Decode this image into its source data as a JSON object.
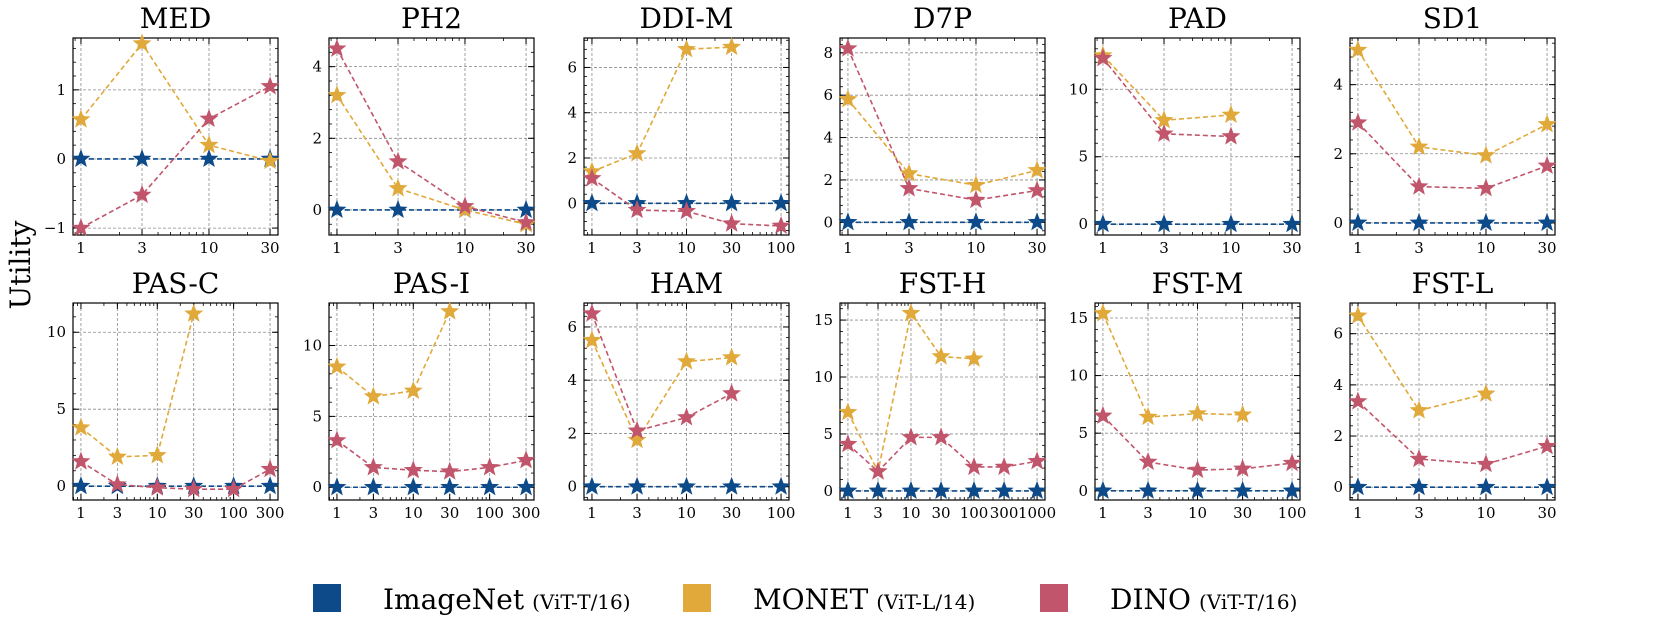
{
  "figure": {
    "ylabel": "Utility",
    "colors": {
      "imagenet": "#0c4a8a",
      "monet": "#e0a93a",
      "dino": "#c1556b"
    },
    "legend": [
      {
        "key": "imagenet",
        "label": "ImageNet",
        "sub": "(ViT-T/16)"
      },
      {
        "key": "monet",
        "label": "MONET",
        "sub": "(ViT-L/14)"
      },
      {
        "key": "dino",
        "label": "DINO",
        "sub": "(ViT-T/16)"
      }
    ]
  },
  "chart_data": [
    {
      "type": "line",
      "title": "MED",
      "xscale": "log",
      "x_ticks": [
        "1",
        "3",
        "10",
        "30"
      ],
      "xlim": [
        1,
        30
      ],
      "ylim": [
        -1.1,
        1.75
      ],
      "y_ticks": [
        -1,
        0,
        1
      ],
      "series": [
        {
          "key": "imagenet",
          "x": [
            1,
            3,
            10,
            30
          ],
          "y": [
            0,
            0,
            0,
            0
          ]
        },
        {
          "key": "monet",
          "x": [
            1,
            3,
            10,
            30
          ],
          "y": [
            0.57,
            1.67,
            0.2,
            -0.03
          ]
        },
        {
          "key": "dino",
          "x": [
            1,
            3,
            10,
            30
          ],
          "y": [
            -1.0,
            -0.52,
            0.58,
            1.05
          ]
        }
      ]
    },
    {
      "type": "line",
      "title": "PH2",
      "xscale": "log",
      "x_ticks": [
        "1",
        "3",
        "10",
        "30"
      ],
      "xlim": [
        1,
        30
      ],
      "ylim": [
        -0.7,
        4.8
      ],
      "y_ticks": [
        0,
        2,
        4
      ],
      "series": [
        {
          "key": "imagenet",
          "x": [
            1,
            3,
            10,
            30
          ],
          "y": [
            0,
            0,
            0,
            0
          ]
        },
        {
          "key": "monet",
          "x": [
            1,
            3,
            10,
            30
          ],
          "y": [
            3.2,
            0.6,
            0.0,
            -0.4
          ]
        },
        {
          "key": "dino",
          "x": [
            1,
            3,
            10,
            30
          ],
          "y": [
            4.5,
            1.35,
            0.1,
            -0.35
          ]
        }
      ]
    },
    {
      "type": "line",
      "title": "DDI-M",
      "xscale": "log",
      "x_ticks": [
        "1",
        "3",
        "10",
        "30",
        "100"
      ],
      "xlim": [
        1,
        100
      ],
      "ylim": [
        -1.4,
        7.3
      ],
      "y_ticks": [
        0,
        2,
        4,
        6
      ],
      "series": [
        {
          "key": "imagenet",
          "x": [
            1,
            3,
            10,
            30,
            100
          ],
          "y": [
            0,
            0,
            0,
            0,
            0
          ]
        },
        {
          "key": "monet",
          "x": [
            1,
            3,
            10,
            30
          ],
          "y": [
            1.4,
            2.2,
            6.8,
            6.9
          ]
        },
        {
          "key": "dino",
          "x": [
            1,
            3,
            10,
            30,
            100
          ],
          "y": [
            1.1,
            -0.3,
            -0.35,
            -0.9,
            -1.0
          ]
        }
      ]
    },
    {
      "type": "line",
      "title": "D7P",
      "xscale": "log",
      "x_ticks": [
        "1",
        "3",
        "10",
        "30"
      ],
      "xlim": [
        1,
        30
      ],
      "ylim": [
        -0.6,
        8.7
      ],
      "y_ticks": [
        0,
        2,
        4,
        6,
        8
      ],
      "series": [
        {
          "key": "imagenet",
          "x": [
            1,
            3,
            10,
            30
          ],
          "y": [
            0,
            0,
            0,
            0
          ]
        },
        {
          "key": "monet",
          "x": [
            1,
            3,
            10,
            30
          ],
          "y": [
            5.8,
            2.3,
            1.75,
            2.45
          ]
        },
        {
          "key": "dino",
          "x": [
            1,
            3,
            10,
            30
          ],
          "y": [
            8.2,
            1.6,
            1.05,
            1.5
          ]
        }
      ]
    },
    {
      "type": "line",
      "title": "PAD",
      "xscale": "log",
      "x_ticks": [
        "1",
        "3",
        "10",
        "30"
      ],
      "xlim": [
        1,
        30
      ],
      "ylim": [
        -0.8,
        13.8
      ],
      "y_ticks": [
        0,
        5,
        10
      ],
      "series": [
        {
          "key": "imagenet",
          "x": [
            1,
            3,
            10,
            30
          ],
          "y": [
            0,
            0,
            0,
            0
          ]
        },
        {
          "key": "monet",
          "x": [
            1,
            3,
            10
          ],
          "y": [
            12.5,
            7.7,
            8.1
          ]
        },
        {
          "key": "dino",
          "x": [
            1,
            3,
            10
          ],
          "y": [
            12.3,
            6.7,
            6.5
          ]
        }
      ]
    },
    {
      "type": "line",
      "title": "SD1",
      "xscale": "log",
      "x_ticks": [
        "1",
        "3",
        "10",
        "30"
      ],
      "xlim": [
        1,
        30
      ],
      "ylim": [
        -0.35,
        5.35
      ],
      "y_ticks": [
        0,
        2,
        4
      ],
      "series": [
        {
          "key": "imagenet",
          "x": [
            1,
            3,
            10,
            30
          ],
          "y": [
            0,
            0,
            0,
            0
          ]
        },
        {
          "key": "monet",
          "x": [
            1,
            3,
            10,
            30
          ],
          "y": [
            5.0,
            2.2,
            1.95,
            2.85
          ]
        },
        {
          "key": "dino",
          "x": [
            1,
            3,
            10,
            30
          ],
          "y": [
            2.9,
            1.05,
            1.0,
            1.65
          ]
        }
      ]
    },
    {
      "type": "line",
      "title": "PAS-C",
      "xscale": "log",
      "x_ticks": [
        "1",
        "3",
        "10",
        "30",
        "100",
        "300"
      ],
      "xlim": [
        1,
        300
      ],
      "ylim": [
        -0.9,
        11.9
      ],
      "y_ticks": [
        0,
        5,
        10
      ],
      "series": [
        {
          "key": "imagenet",
          "x": [
            1,
            3,
            10,
            30,
            100,
            300
          ],
          "y": [
            0,
            0,
            0,
            0,
            0,
            0
          ]
        },
        {
          "key": "monet",
          "x": [
            1,
            3,
            10,
            30
          ],
          "y": [
            3.8,
            1.9,
            2.0,
            11.2
          ]
        },
        {
          "key": "dino",
          "x": [
            1,
            3,
            10,
            30,
            100,
            300
          ],
          "y": [
            1.6,
            0.1,
            -0.1,
            -0.2,
            -0.2,
            1.1
          ]
        }
      ]
    },
    {
      "type": "line",
      "title": "PAS-I",
      "xscale": "log",
      "x_ticks": [
        "1",
        "3",
        "10",
        "30",
        "100",
        "300"
      ],
      "xlim": [
        1,
        300
      ],
      "ylim": [
        -0.9,
        13.0
      ],
      "y_ticks": [
        0,
        5,
        10
      ],
      "series": [
        {
          "key": "imagenet",
          "x": [
            1,
            3,
            10,
            30,
            100,
            300
          ],
          "y": [
            0,
            0,
            0,
            0,
            0,
            0
          ]
        },
        {
          "key": "monet",
          "x": [
            1,
            3,
            10,
            30
          ],
          "y": [
            8.5,
            6.4,
            6.8,
            12.4
          ]
        },
        {
          "key": "dino",
          "x": [
            1,
            3,
            10,
            30,
            100,
            300
          ],
          "y": [
            3.3,
            1.4,
            1.2,
            1.1,
            1.4,
            1.9
          ]
        }
      ]
    },
    {
      "type": "line",
      "title": "HAM",
      "xscale": "log",
      "x_ticks": [
        "1",
        "3",
        "10",
        "30",
        "100"
      ],
      "xlim": [
        1,
        100
      ],
      "ylim": [
        -0.5,
        6.9
      ],
      "y_ticks": [
        0,
        2,
        4,
        6
      ],
      "series": [
        {
          "key": "imagenet",
          "x": [
            1,
            3,
            10,
            30,
            100
          ],
          "y": [
            0,
            0,
            0,
            0,
            0
          ]
        },
        {
          "key": "monet",
          "x": [
            1,
            3,
            10,
            30
          ],
          "y": [
            5.5,
            1.75,
            4.7,
            4.85
          ]
        },
        {
          "key": "dino",
          "x": [
            1,
            3,
            10,
            30
          ],
          "y": [
            6.5,
            2.1,
            2.6,
            3.5
          ]
        }
      ]
    },
    {
      "type": "line",
      "title": "FST-H",
      "xscale": "log",
      "x_ticks": [
        "1",
        "3",
        "10",
        "30",
        "100",
        "300",
        "1000"
      ],
      "xlim": [
        1,
        1000
      ],
      "ylim": [
        -0.8,
        16.5
      ],
      "y_ticks": [
        0,
        5,
        10,
        15
      ],
      "series": [
        {
          "key": "imagenet",
          "x": [
            1,
            3,
            10,
            30,
            100,
            300,
            1000
          ],
          "y": [
            0,
            0,
            0,
            0,
            0,
            0,
            0
          ]
        },
        {
          "key": "monet",
          "x": [
            1,
            3,
            10,
            30,
            100
          ],
          "y": [
            6.9,
            1.7,
            15.6,
            11.8,
            11.6
          ]
        },
        {
          "key": "dino",
          "x": [
            1,
            3,
            10,
            30,
            100,
            300,
            1000
          ],
          "y": [
            4.1,
            1.7,
            4.7,
            4.7,
            2.1,
            2.1,
            2.6
          ]
        }
      ]
    },
    {
      "type": "line",
      "title": "FST-M",
      "xscale": "log",
      "x_ticks": [
        "1",
        "3",
        "10",
        "30",
        "100"
      ],
      "xlim": [
        1,
        100
      ],
      "ylim": [
        -0.8,
        16.3
      ],
      "y_ticks": [
        0,
        5,
        10,
        15
      ],
      "series": [
        {
          "key": "imagenet",
          "x": [
            1,
            3,
            10,
            30,
            100
          ],
          "y": [
            0,
            0,
            0,
            0,
            0
          ]
        },
        {
          "key": "monet",
          "x": [
            1,
            3,
            10,
            30
          ],
          "y": [
            15.4,
            6.4,
            6.7,
            6.6
          ]
        },
        {
          "key": "dino",
          "x": [
            1,
            3,
            10,
            30,
            100
          ],
          "y": [
            6.5,
            2.5,
            1.8,
            1.9,
            2.4
          ]
        }
      ]
    },
    {
      "type": "line",
      "title": "FST-L",
      "xscale": "log",
      "x_ticks": [
        "1",
        "3",
        "10",
        "30"
      ],
      "xlim": [
        1,
        30
      ],
      "ylim": [
        -0.5,
        7.2
      ],
      "y_ticks": [
        0,
        2,
        4,
        6
      ],
      "series": [
        {
          "key": "imagenet",
          "x": [
            1,
            3,
            10,
            30
          ],
          "y": [
            0,
            0,
            0,
            0
          ]
        },
        {
          "key": "monet",
          "x": [
            1,
            3,
            10
          ],
          "y": [
            6.7,
            3.0,
            3.65
          ]
        },
        {
          "key": "dino",
          "x": [
            1,
            3,
            10,
            30
          ],
          "y": [
            3.35,
            1.1,
            0.9,
            1.6
          ]
        }
      ]
    }
  ]
}
